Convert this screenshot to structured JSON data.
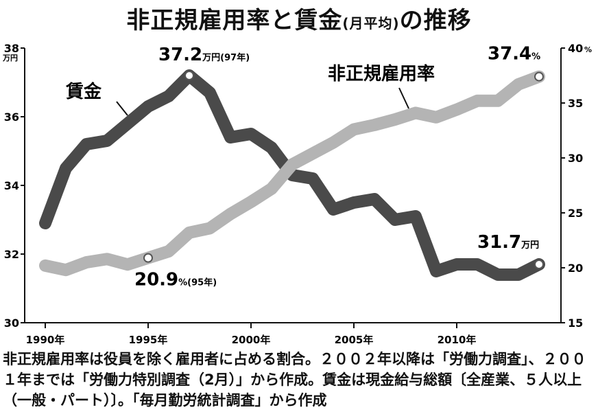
{
  "title": {
    "main": "非正規雇用率と賃金",
    "sub": "(月平均)",
    "tail": "の推移"
  },
  "chart_data": {
    "type": "line",
    "title": "非正規雇用率と賃金(月平均)の推移",
    "x": [
      1990,
      1991,
      1992,
      1993,
      1994,
      1995,
      1996,
      1997,
      1998,
      1999,
      2000,
      2001,
      2002,
      2003,
      2004,
      2005,
      2006,
      2007,
      2008,
      2009,
      2010,
      2011,
      2012,
      2013,
      2014
    ],
    "x_ticks": [
      {
        "value": 1990,
        "label": "1990年"
      },
      {
        "value": 1995,
        "label": "1995年"
      },
      {
        "value": 2000,
        "label": "2000年"
      },
      {
        "value": 2005,
        "label": "2005年"
      },
      {
        "value": 2010,
        "label": "2010年"
      }
    ],
    "left_axis": {
      "unit": "万円",
      "ylim": [
        30,
        38
      ],
      "ticks": [
        "30",
        "32",
        "34",
        "36",
        "38"
      ]
    },
    "right_axis": {
      "unit": "%",
      "ylim": [
        15,
        40
      ],
      "ticks": [
        "15",
        "20",
        "25",
        "30",
        "35",
        "40"
      ]
    },
    "series": [
      {
        "name": "賃金",
        "axis": "left",
        "color": "#4a4a4a",
        "values": [
          32.9,
          34.5,
          35.2,
          35.3,
          35.8,
          36.3,
          36.6,
          37.2,
          36.7,
          35.4,
          35.5,
          35.1,
          34.3,
          34.2,
          33.3,
          33.5,
          33.6,
          33.0,
          33.1,
          31.5,
          31.7,
          31.7,
          31.4,
          31.4,
          31.7
        ]
      },
      {
        "name": "非正規雇用率",
        "axis": "right",
        "color": "#b4b4b4",
        "values": [
          20.2,
          19.8,
          20.5,
          20.8,
          20.3,
          20.9,
          21.5,
          23.2,
          23.6,
          24.9,
          26.0,
          27.2,
          29.4,
          30.4,
          31.4,
          32.6,
          33.0,
          33.5,
          34.1,
          33.7,
          34.4,
          35.2,
          35.2,
          36.7,
          37.4
        ]
      }
    ],
    "annotations": [
      {
        "series": "賃金",
        "x": 1997,
        "value": "37.2",
        "unit": "万円(97年)"
      },
      {
        "series": "賃金",
        "x": 2014,
        "value": "31.7",
        "unit": "万円"
      },
      {
        "series": "非正規雇用率",
        "x": 1995,
        "value": "20.9",
        "unit": "%(95年)"
      },
      {
        "series": "非正規雇用率",
        "x": 2014,
        "value": "37.4",
        "unit": "%"
      }
    ],
    "grid": false,
    "legend": "inline labels"
  },
  "note": "非正規雇用率は役員を除く雇用者に占める割合。２００２年以降は「労働力調査」、２００１年までは「労働力特別調査（2月）」から作成。賃金は現金給与総額〔全産業、５人以上（一般・パート）〕。「毎月勤労統計調査」から作成"
}
